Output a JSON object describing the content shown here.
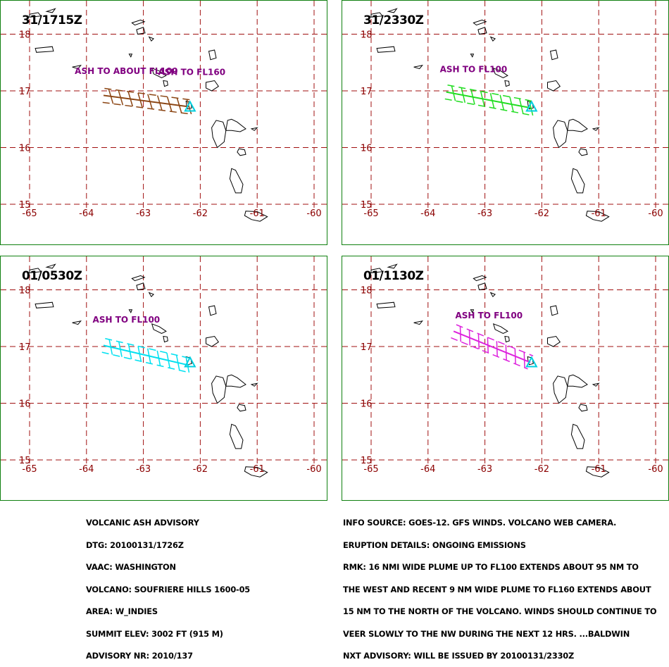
{
  "panels": [
    {
      "time_label": "31/1715Z",
      "plume_color": "#8b4513",
      "plume": [
        [
          -63.7,
          16.92
        ],
        [
          -62.2,
          16.72
        ]
      ],
      "labels": [
        {
          "text": "ASH TO ABOUT FL100",
          "lon": -63.3,
          "lat": 17.3
        },
        {
          "text": "ASH TO FL160",
          "lon": -62.15,
          "lat": 17.28
        }
      ]
    },
    {
      "time_label": "31/2330Z",
      "plume_color": "#22dd22",
      "plume": [
        [
          -63.68,
          16.98
        ],
        [
          -62.2,
          16.7
        ]
      ],
      "labels": [
        {
          "text": "ASH TO  FL100",
          "lon": -63.2,
          "lat": 17.33
        }
      ]
    },
    {
      "time_label": "01/0530Z",
      "plume_color": "#00e0f0",
      "plume": [
        [
          -63.7,
          17.02
        ],
        [
          -62.2,
          16.67
        ]
      ],
      "labels": [
        {
          "text": "ASH TO FL100",
          "lon": -63.3,
          "lat": 17.42
        }
      ]
    },
    {
      "time_label": "01/1130Z",
      "plume_color": "#dd22dd",
      "plume": [
        [
          -63.55,
          17.27
        ],
        [
          -62.2,
          16.72
        ]
      ],
      "labels": [
        {
          "text": "ASH TO FL100",
          "lon": -62.93,
          "lat": 17.5
        }
      ]
    }
  ],
  "map": {
    "lat_labels": [
      "18",
      "17",
      "16",
      "15"
    ],
    "lon_labels": [
      "-65",
      "-64",
      "-63",
      "-62",
      "-61",
      "-60"
    ],
    "grid_color": "#a01010",
    "label_color": "#8b0000",
    "ash_label_color": "#800080",
    "volcano_color": "#00d0e0"
  },
  "advisory_left": [
    "VOLCANIC ASH ADVISORY",
    "DTG: 20100131/1726Z",
    "VAAC: WASHINGTON",
    "VOLCANO: SOUFRIERE HILLS 1600-05",
    "AREA: W_INDIES",
    "SUMMIT ELEV: 3002 FT (915 M)",
    "ADVISORY NR: 2010/137"
  ],
  "advisory_right": [
    "INFO SOURCE: GOES-12. GFS WINDS. VOLCANO WEB CAMERA.",
    "ERUPTION DETAILS: ONGOING EMISSIONS",
    "RMK: 16 NMI WIDE PLUME UP TO FL100 EXTENDS ABOUT 95 NM TO",
    "THE WEST AND RECENT 9 NM WIDE PLUME TO FL160 EXTENDS ABOUT",
    "15 NM TO THE NORTH OF THE VOLCANO. WINDS SHOULD CONTINUE TO",
    "VEER SLOWLY TO THE NW DURING THE NEXT 12 HRS. ...BALDWIN",
    "NXT ADVISORY: WILL BE ISSUED BY 20100131/2330Z"
  ]
}
